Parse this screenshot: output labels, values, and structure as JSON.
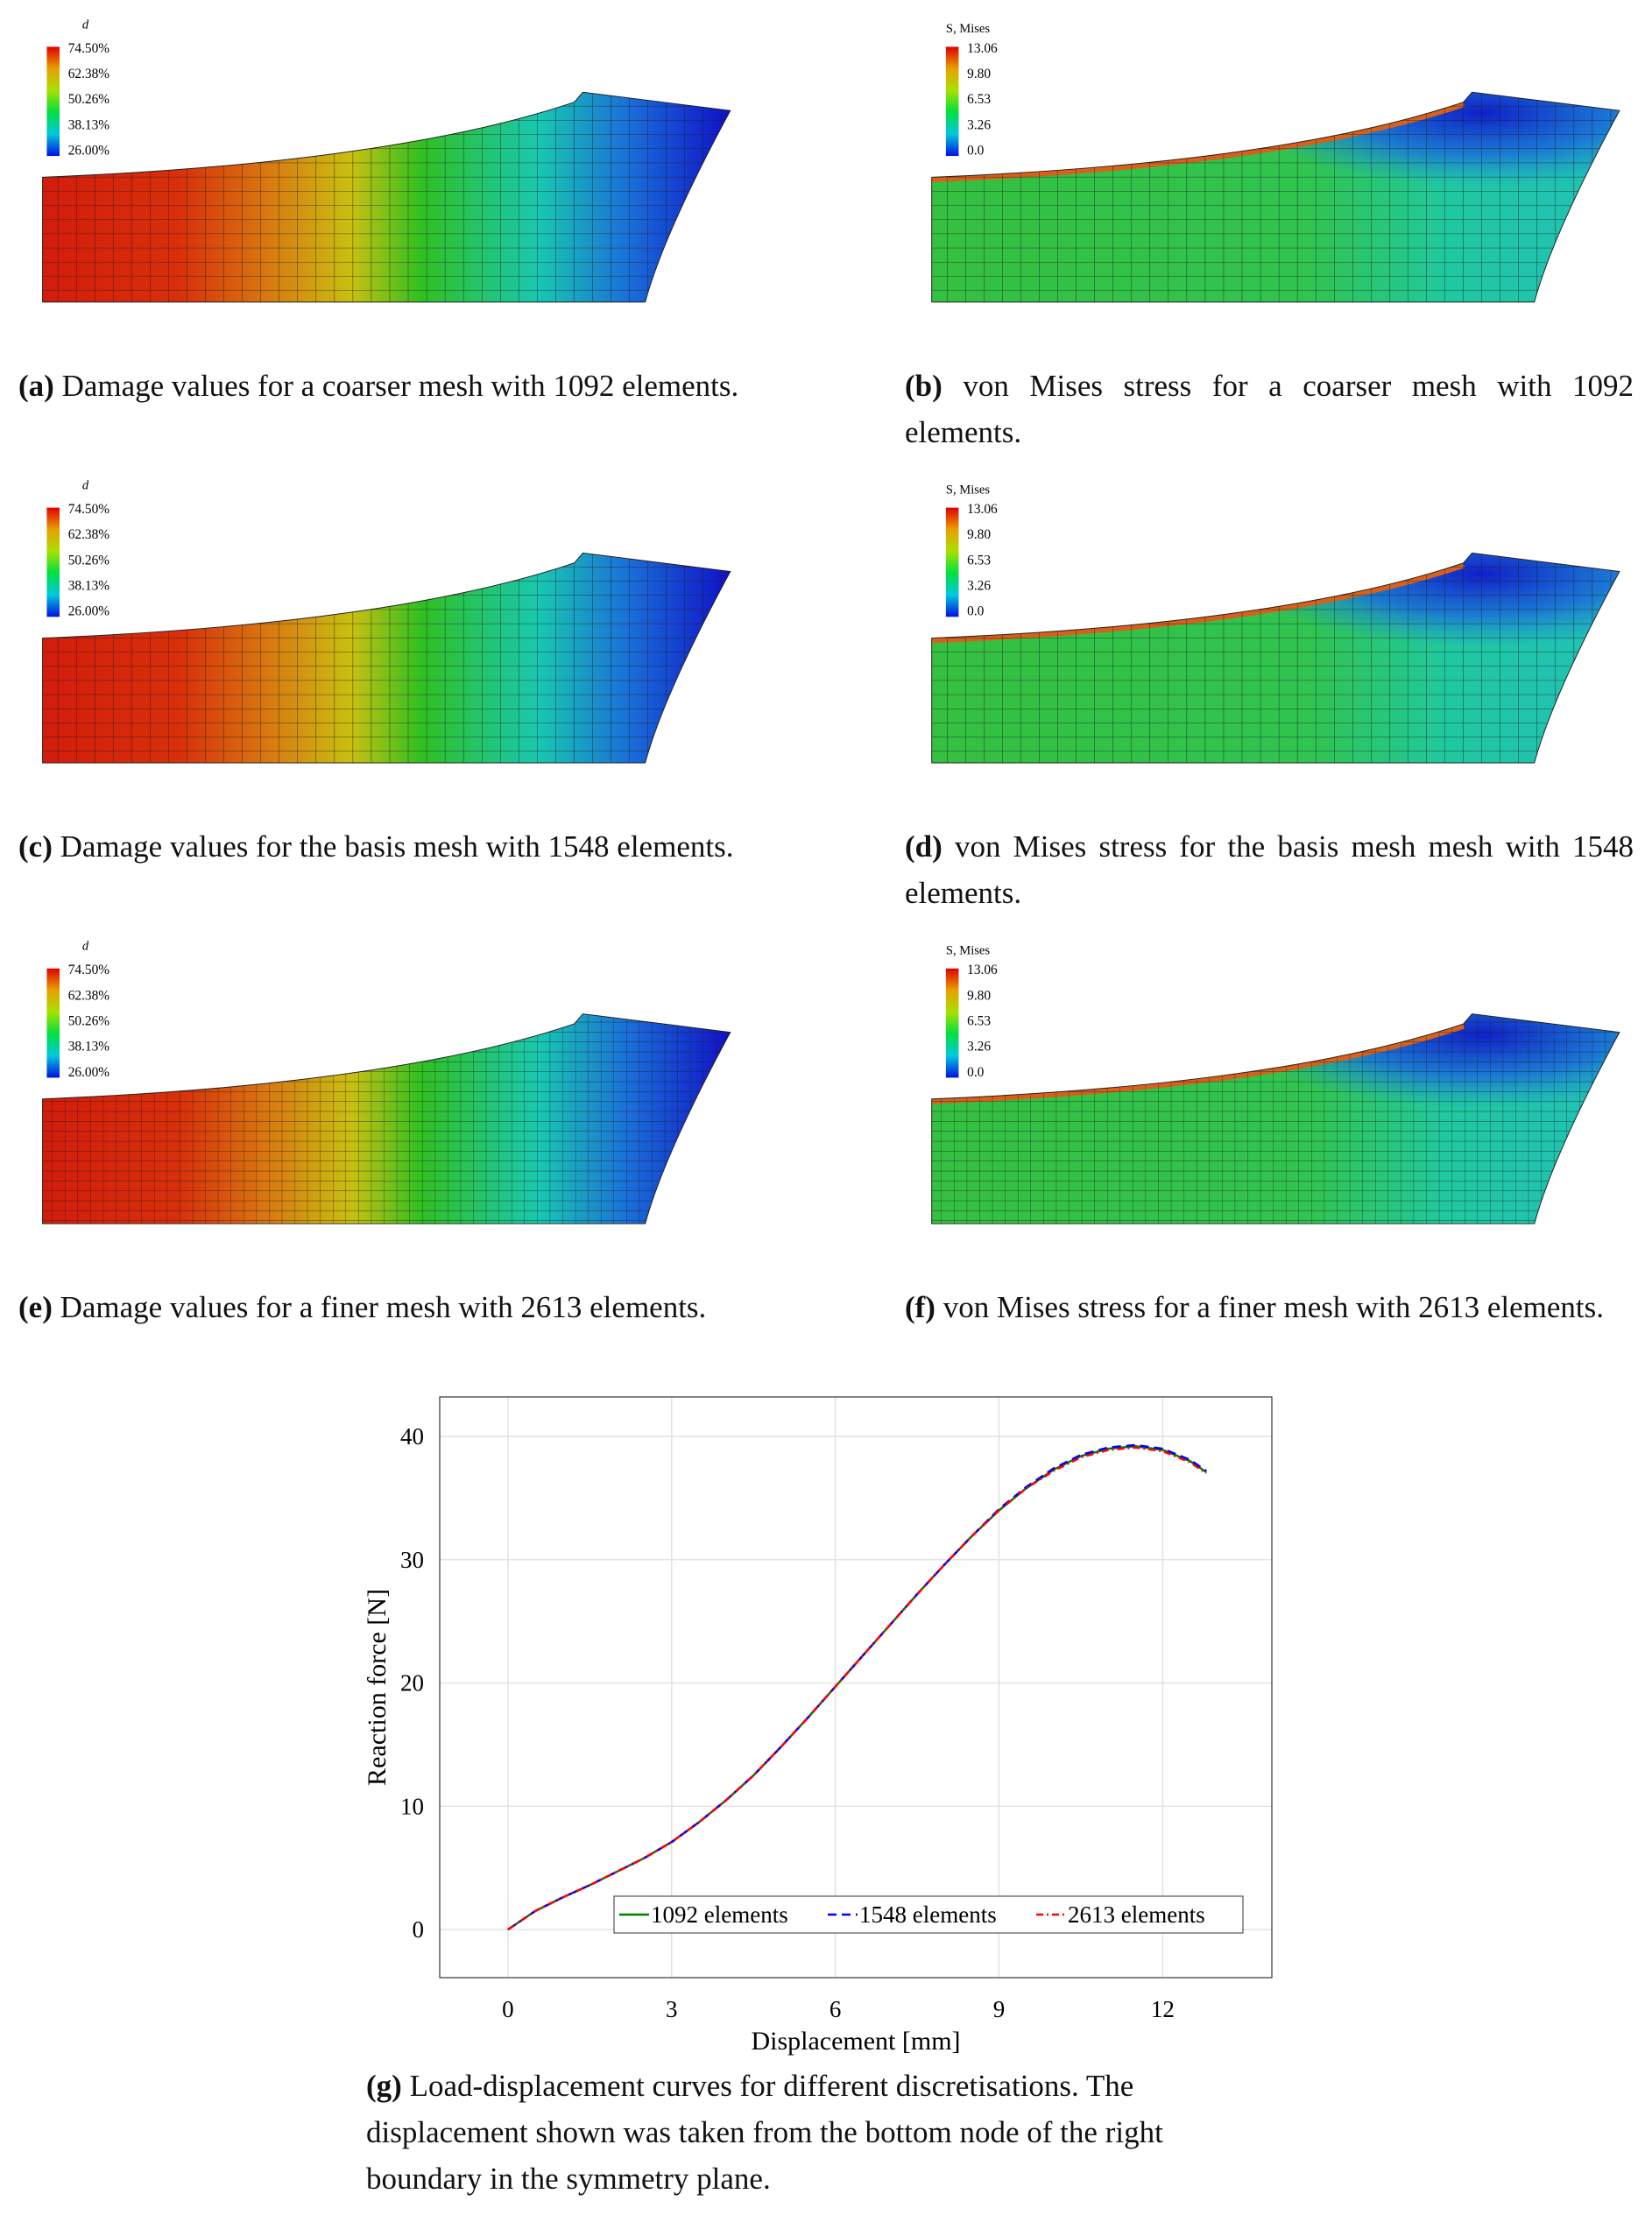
{
  "panels": [
    {
      "kind": "damage",
      "legend_title": "d",
      "legend_labels": [
        "74.50%",
        "62.38%",
        "50.26%",
        "38.13%",
        "26.00%"
      ],
      "caption": {
        "label": "(a)",
        "text": "Damage values for a coarser mesh with 1092 elements."
      }
    },
    {
      "kind": "stress",
      "legend_title": "S, Mises",
      "legend_labels": [
        "13.06",
        "9.80",
        "6.53",
        "3.26",
        "0.0"
      ],
      "caption": {
        "label": "(b)",
        "text": "von Mises stress for a coarser mesh with 1092 elements."
      }
    },
    {
      "kind": "damage",
      "legend_title": "d",
      "legend_labels": [
        "74.50%",
        "62.38%",
        "50.26%",
        "38.13%",
        "26.00%"
      ],
      "caption": {
        "label": "(c)",
        "text": "Damage values for the basis mesh with 1548 elements."
      }
    },
    {
      "kind": "stress",
      "legend_title": "S, Mises",
      "legend_labels": [
        "13.06",
        "9.80",
        "6.53",
        "3.26",
        "0.0"
      ],
      "caption": {
        "label": "(d)",
        "text": "von Mises stress for the basis mesh mesh with 1548 elements."
      }
    },
    {
      "kind": "damage",
      "legend_title": "d",
      "legend_labels": [
        "74.50%",
        "62.38%",
        "50.26%",
        "38.13%",
        "26.00%"
      ],
      "caption": {
        "label": "(e)",
        "text": "Damage values for a finer mesh with 2613 elements."
      }
    },
    {
      "kind": "stress",
      "legend_title": "S, Mises",
      "legend_labels": [
        "13.06",
        "9.80",
        "6.53",
        "3.26",
        "0.0"
      ],
      "caption": {
        "label": "(f)",
        "text": "von Mises stress for a finer mesh with 2613 elements."
      }
    }
  ],
  "chart_data": {
    "type": "line",
    "x_label": "Displacement [mm]",
    "y_label": "Reaction force [N]",
    "x": [
      0,
      0.5,
      1,
      1.5,
      2,
      2.5,
      3,
      3.5,
      4,
      4.5,
      5,
      5.5,
      6,
      6.5,
      7,
      7.5,
      8,
      8.5,
      9,
      9.5,
      10,
      10.5,
      11,
      11.5,
      12,
      12.5,
      12.8
    ],
    "series": [
      {
        "name": "1092 elements",
        "color": "#008000",
        "dash": "solid",
        "values": [
          0,
          1.5,
          2.6,
          3.6,
          4.7,
          5.8,
          7.1,
          8.7,
          10.5,
          12.5,
          14.8,
          17.2,
          19.7,
          22.2,
          24.7,
          27.2,
          29.6,
          31.9,
          34.0,
          35.8,
          37.3,
          38.4,
          39.0,
          39.2,
          38.9,
          38.0,
          37.1
        ]
      },
      {
        "name": "1548 elements",
        "color": "#0000ff",
        "dash": "dashed",
        "values": [
          0,
          1.5,
          2.6,
          3.6,
          4.7,
          5.8,
          7.1,
          8.7,
          10.5,
          12.5,
          14.8,
          17.2,
          19.7,
          22.2,
          24.7,
          27.2,
          29.6,
          31.9,
          34.1,
          35.9,
          37.4,
          38.5,
          39.1,
          39.3,
          39.0,
          38.1,
          37.2
        ]
      },
      {
        "name": "2613 elements",
        "color": "#ff0000",
        "dash": "dashdot",
        "values": [
          0,
          1.5,
          2.6,
          3.6,
          4.7,
          5.8,
          7.1,
          8.7,
          10.5,
          12.5,
          14.8,
          17.2,
          19.7,
          22.2,
          24.7,
          27.2,
          29.6,
          31.9,
          34.0,
          35.8,
          37.2,
          38.3,
          38.9,
          39.1,
          38.8,
          37.9,
          37.0
        ]
      }
    ],
    "xlim": [
      -1.25,
      14
    ],
    "ylim": [
      -3.9,
      43.2
    ],
    "xticks": [
      0,
      3,
      6,
      9,
      12
    ],
    "yticks": [
      0,
      10,
      20,
      30,
      40
    ],
    "grid": true,
    "legend": "lower right",
    "caption": {
      "label": "(g)",
      "text": "Load-displacement curves for different discretisations. The displacement shown was taken from the bottom node of the right boundary in the symmetry plane."
    }
  }
}
